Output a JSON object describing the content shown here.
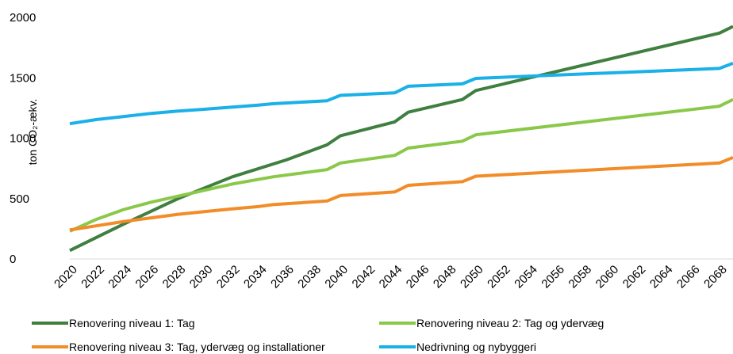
{
  "chart_data": {
    "type": "line",
    "title": "",
    "xlabel": "",
    "ylabel": "ton CO₂-ækv.",
    "ylim": [
      0,
      2000
    ],
    "xlim": [
      2020,
      2069
    ],
    "yticks": [
      0,
      500,
      1000,
      1500,
      2000
    ],
    "yticklabels": [
      "0",
      "500",
      "1000",
      "1500",
      "2000"
    ],
    "xticks": [
      2020,
      2022,
      2024,
      2026,
      2028,
      2030,
      2032,
      2034,
      2036,
      2038,
      2040,
      2042,
      2044,
      2046,
      2048,
      2050,
      2052,
      2054,
      2056,
      2058,
      2060,
      2062,
      2064,
      2066,
      2068
    ],
    "xticklabels": [
      "2020",
      "2022",
      "2024",
      "2026",
      "2028",
      "2030",
      "2032",
      "2034",
      "2036",
      "2038",
      "2040",
      "2042",
      "2044",
      "2046",
      "2048",
      "2050",
      "2052",
      "2054",
      "2056",
      "2058",
      "2060",
      "2062",
      "2064",
      "2066",
      "2068"
    ],
    "grid": false,
    "legend_position": "bottom",
    "series": [
      {
        "name": "Renovering niveau 1: Tag",
        "color": "#3f7f3f",
        "points": [
          [
            2020,
            70
          ],
          [
            2024,
            290
          ],
          [
            2028,
            500
          ],
          [
            2032,
            680
          ],
          [
            2036,
            820
          ],
          [
            2039,
            945
          ],
          [
            2040,
            1020
          ],
          [
            2044,
            1135
          ],
          [
            2045,
            1215
          ],
          [
            2049,
            1320
          ],
          [
            2050,
            1395
          ],
          [
            2068,
            1870
          ],
          [
            2069,
            1925
          ]
        ]
      },
      {
        "name": "Renovering niveau 2: Tag og ydervæg",
        "color": "#8ac84a",
        "points": [
          [
            2020,
            230
          ],
          [
            2022,
            330
          ],
          [
            2024,
            410
          ],
          [
            2026,
            470
          ],
          [
            2028,
            520
          ],
          [
            2030,
            570
          ],
          [
            2032,
            620
          ],
          [
            2034,
            660
          ],
          [
            2035,
            680
          ],
          [
            2039,
            740
          ],
          [
            2040,
            795
          ],
          [
            2044,
            858
          ],
          [
            2045,
            918
          ],
          [
            2049,
            975
          ],
          [
            2050,
            1028
          ],
          [
            2068,
            1265
          ],
          [
            2069,
            1320
          ]
        ]
      },
      {
        "name": "Renovering niveau 3: Tag, ydervæg og installationer",
        "color": "#f28c28",
        "points": [
          [
            2020,
            240
          ],
          [
            2024,
            310
          ],
          [
            2026,
            340
          ],
          [
            2028,
            370
          ],
          [
            2030,
            393
          ],
          [
            2032,
            415
          ],
          [
            2034,
            435
          ],
          [
            2035,
            450
          ],
          [
            2039,
            480
          ],
          [
            2040,
            525
          ],
          [
            2044,
            555
          ],
          [
            2045,
            610
          ],
          [
            2049,
            640
          ],
          [
            2050,
            685
          ],
          [
            2068,
            795
          ],
          [
            2069,
            840
          ]
        ]
      },
      {
        "name": "Nedrivning og nybyggeri",
        "color": "#1ab0e8",
        "points": [
          [
            2020,
            1120
          ],
          [
            2022,
            1155
          ],
          [
            2024,
            1180
          ],
          [
            2026,
            1205
          ],
          [
            2028,
            1225
          ],
          [
            2030,
            1240
          ],
          [
            2032,
            1258
          ],
          [
            2034,
            1275
          ],
          [
            2035,
            1285
          ],
          [
            2039,
            1310
          ],
          [
            2040,
            1355
          ],
          [
            2044,
            1375
          ],
          [
            2045,
            1430
          ],
          [
            2049,
            1450
          ],
          [
            2050,
            1495
          ],
          [
            2068,
            1578
          ],
          [
            2069,
            1620
          ]
        ]
      }
    ]
  }
}
